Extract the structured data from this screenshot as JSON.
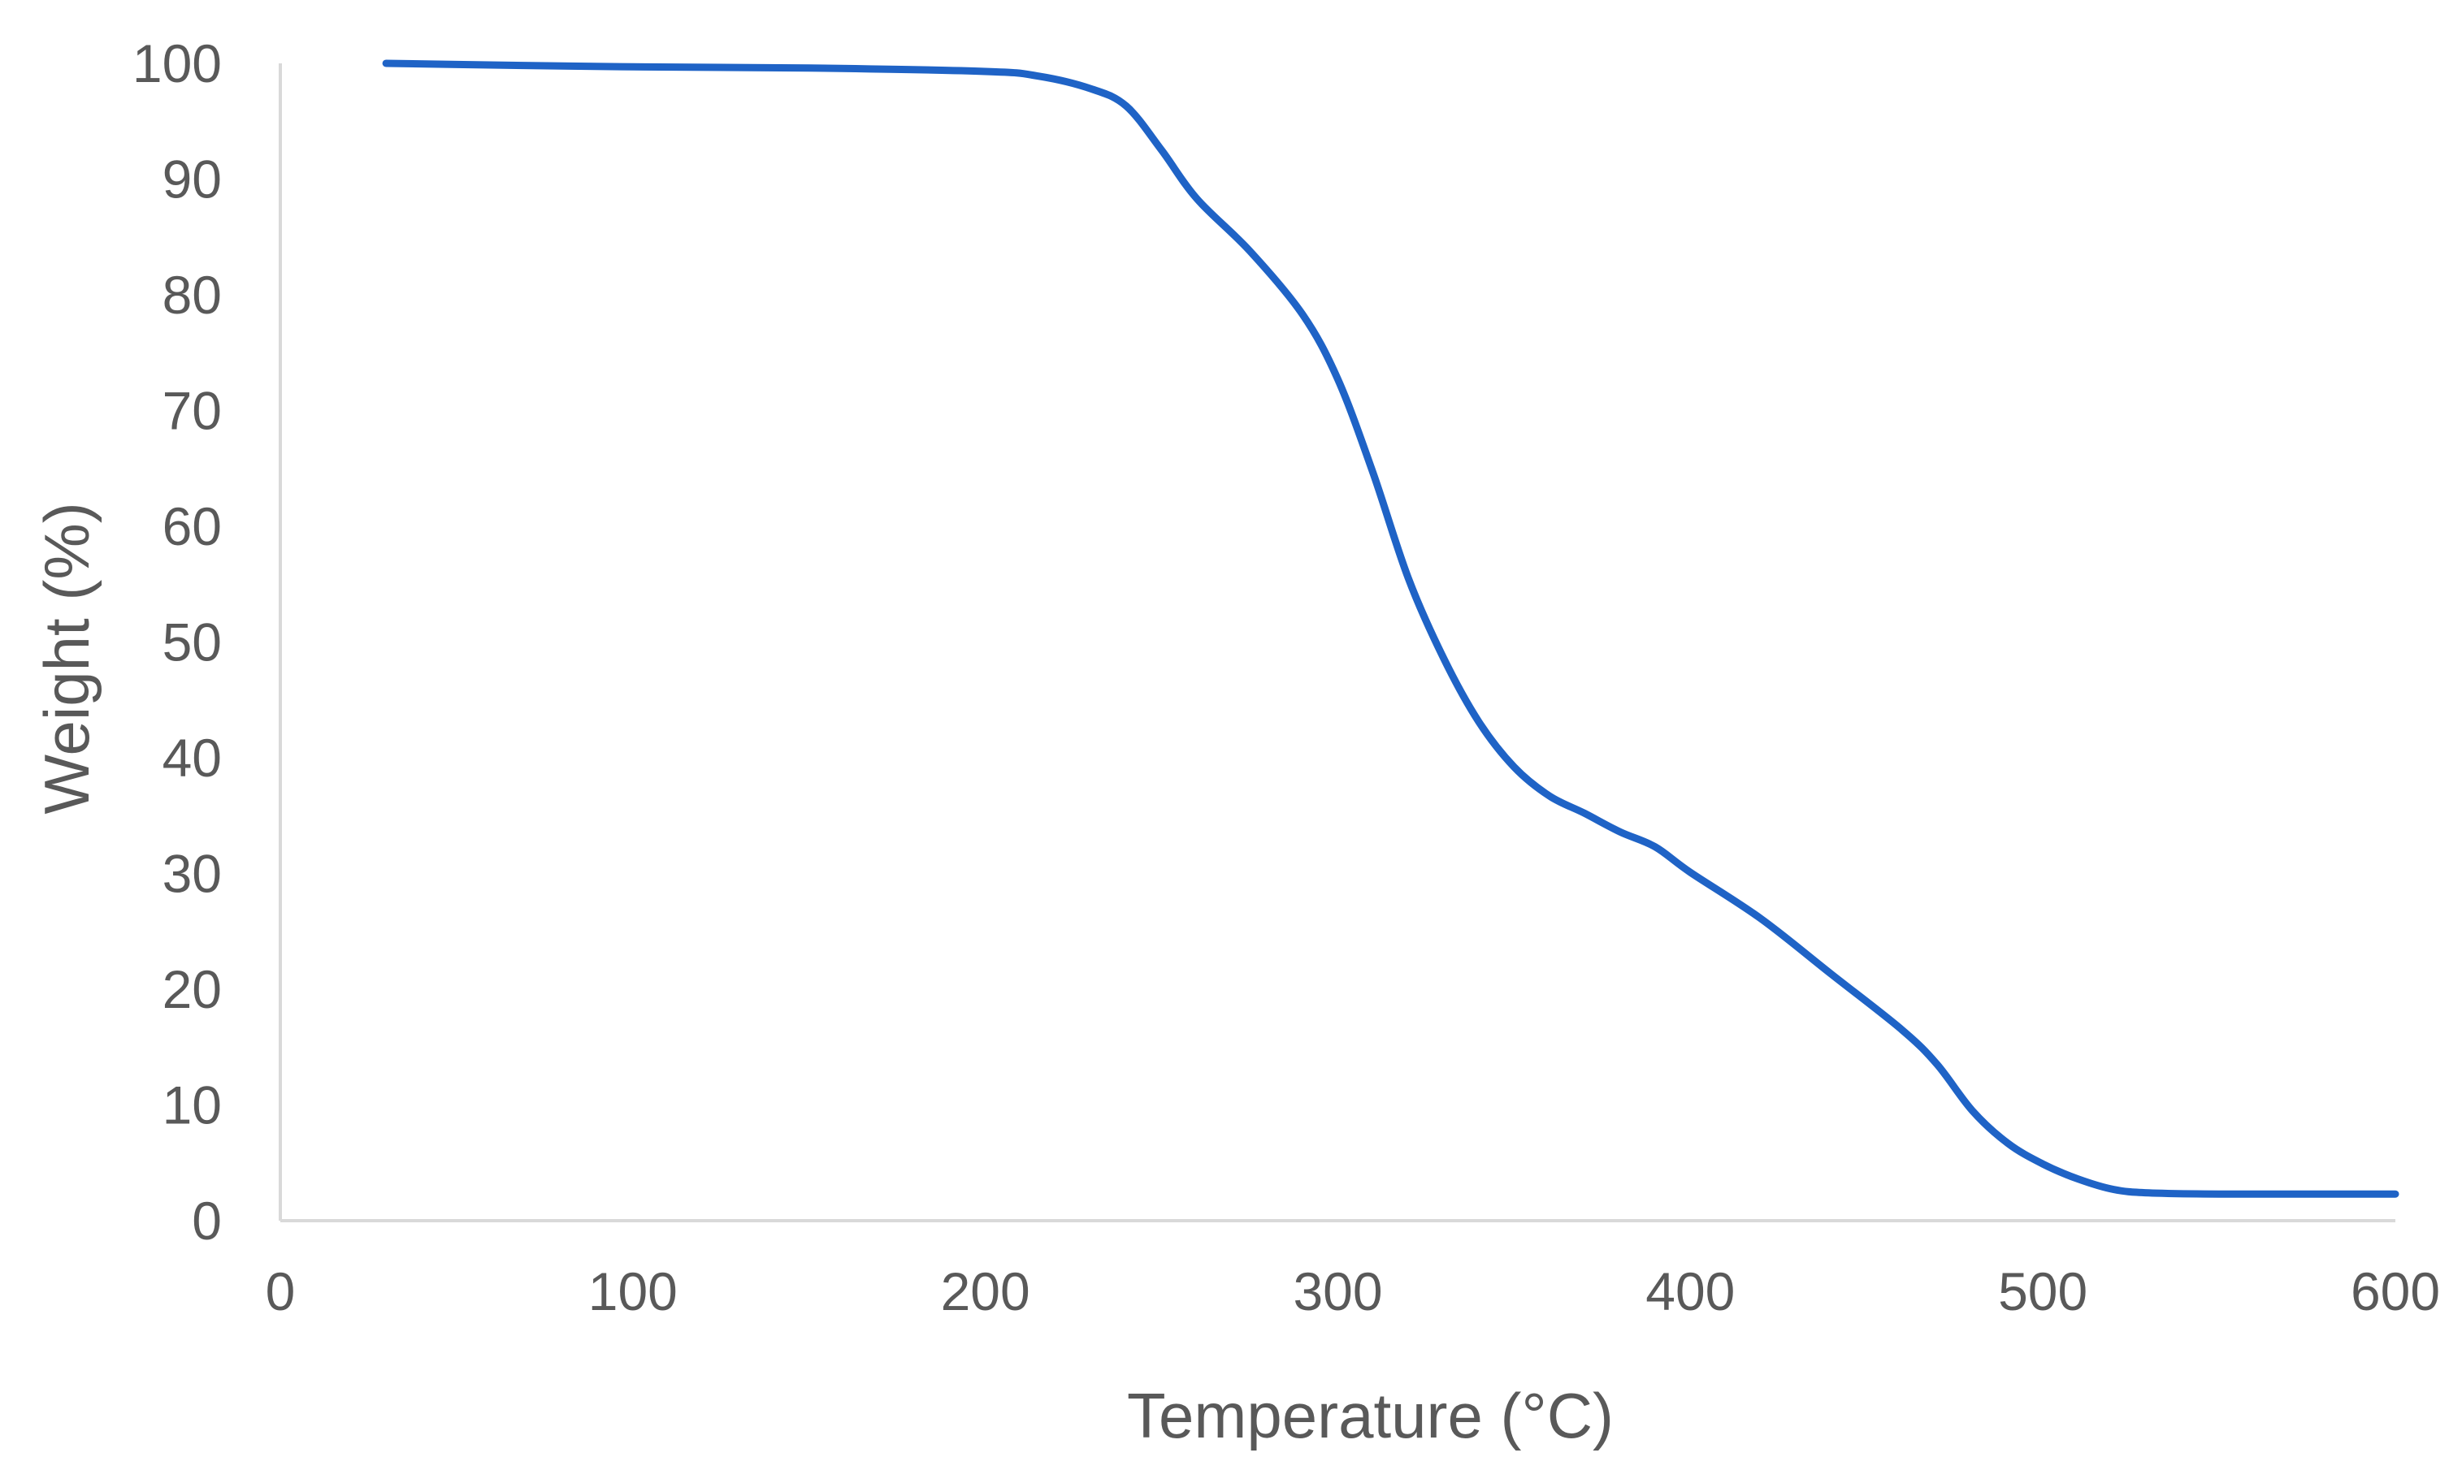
{
  "colors": {
    "line": "#1f63c6",
    "axis": "#d9d9d9",
    "text": "#595959"
  },
  "chart_data": {
    "type": "line",
    "title": "",
    "xlabel": "Temperature (°C)",
    "ylabel": "Weight (%)",
    "xlim": [
      0,
      600
    ],
    "ylim": [
      0,
      100
    ],
    "xticks": [
      0,
      100,
      200,
      300,
      400,
      500,
      600
    ],
    "yticks": [
      0,
      10,
      20,
      30,
      40,
      50,
      60,
      70,
      80,
      90,
      100
    ],
    "grid": false,
    "legend": "none",
    "series": [
      {
        "x": [
          30,
          50,
          100,
          150,
          200,
          215,
          230,
          240,
          250,
          260,
          275,
          290,
          300,
          310,
          320,
          330,
          340,
          350,
          360,
          370,
          380,
          390,
          400,
          420,
          440,
          460,
          470,
          480,
          490,
          500,
          510,
          520,
          530,
          550,
          575,
          600
        ],
        "y": [
          100,
          99.9,
          99.7,
          99.6,
          99.3,
          98.9,
          97.8,
          96.3,
          92.5,
          88.3,
          83.8,
          78.3,
          72.7,
          64.6,
          55.5,
          48.6,
          43.1,
          39.2,
          36.7,
          35.2,
          33.6,
          32.3,
          30.1,
          26.1,
          21.3,
          16.5,
          13.5,
          9.5,
          6.7,
          4.9,
          3.6,
          2.7,
          2.4,
          2.3,
          2.3,
          2.3
        ]
      }
    ]
  }
}
